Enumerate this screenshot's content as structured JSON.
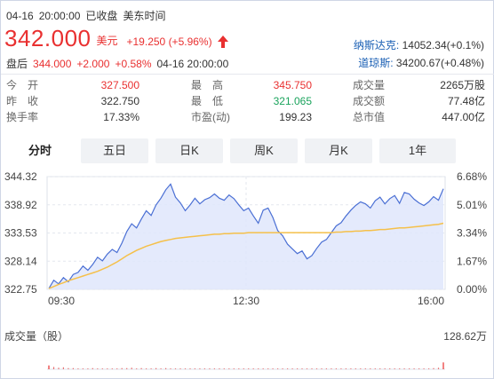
{
  "header": {
    "date": "04-16",
    "time": "20:00:00",
    "status": "已收盘",
    "timezone": "美东时间"
  },
  "quote": {
    "price": "342.000",
    "unit": "美元",
    "change": "+19.250",
    "change_pct": "(+5.96%)"
  },
  "after_hours": {
    "label": "盘后",
    "price": "344.000",
    "change": "+2.000",
    "change_pct": "+0.58%",
    "datetime": "04-16 20:00:00"
  },
  "indices": [
    {
      "name": "纳斯达克:",
      "value": "14052.34(+0.1%)"
    },
    {
      "name": "道琼斯:",
      "value": "34200.67(+0.48%)"
    }
  ],
  "stats": {
    "open_label": "今　开",
    "open": "327.500",
    "prev_close_label": "昨　收",
    "prev_close": "322.750",
    "turnover_label": "换手率",
    "turnover": "17.33%",
    "high_label": "最　高",
    "high": "345.750",
    "low_label": "最　低",
    "low": "321.065",
    "pe_label": "市盈(动)",
    "pe": "199.23",
    "volume_label": "成交量",
    "volume": "2265万股",
    "amount_label": "成交额",
    "amount": "77.48亿",
    "mktcap_label": "总市值",
    "mktcap": "447.00亿"
  },
  "tabs": [
    "分时",
    "五日",
    "日K",
    "周K",
    "月K",
    "1年"
  ],
  "active_tab": 0,
  "colors": {
    "up": "#e93030",
    "down": "#1aa35c",
    "price_line": "#4a6fd4",
    "avg_line": "#f5c04a",
    "fill": "#dfe6fb"
  },
  "chart_data": {
    "type": "line",
    "y_ticks_left": [
      "344.32",
      "338.92",
      "333.53",
      "328.14",
      "322.75"
    ],
    "y_ticks_right": [
      "6.68%",
      "5.01%",
      "3.34%",
      "1.67%",
      "0.00%"
    ],
    "x_ticks": [
      "09:30",
      "12:30",
      "16:00"
    ],
    "ylim": [
      322.75,
      344.32
    ],
    "volume_label": "成交量（股）",
    "volume_max": "128.62万",
    "series": [
      {
        "values": [
          322.9,
          324.5,
          323.8,
          325.0,
          324.2,
          325.6,
          326.0,
          327.2,
          326.4,
          327.5,
          328.9,
          328.2,
          329.5,
          330.4,
          329.8,
          331.6,
          333.8,
          335.3,
          334.5,
          336.2,
          337.8,
          336.9,
          338.9,
          340.2,
          341.8,
          342.9,
          340.4,
          339.3,
          337.8,
          338.9,
          340.2,
          339.1,
          339.9,
          340.3,
          341.0,
          340.2,
          339.8,
          340.8,
          340.1,
          338.9,
          337.8,
          338.3,
          336.8,
          335.4,
          337.9,
          338.3,
          336.5,
          334.0,
          333.0,
          331.4,
          330.5,
          329.6,
          330.1,
          328.6,
          329.2,
          330.6,
          331.8,
          332.3,
          333.6,
          334.9,
          335.5,
          336.8,
          337.9,
          338.8,
          339.5,
          339.1,
          338.3,
          339.7,
          340.4,
          339.1,
          340.1,
          340.7,
          339.2,
          341.3,
          341.0,
          340.0,
          339.3,
          338.8,
          339.5,
          340.5,
          339.8,
          342.0
        ]
      },
      {
        "values": [
          322.9,
          323.3,
          323.7,
          324.0,
          324.4,
          324.7,
          325.0,
          325.3,
          325.6,
          325.9,
          326.2,
          326.6,
          327.0,
          327.5,
          328.0,
          328.6,
          329.2,
          329.7,
          330.2,
          330.6,
          331.0,
          331.3,
          331.6,
          331.9,
          332.1,
          332.3,
          332.5,
          332.6,
          332.7,
          332.8,
          332.9,
          333.0,
          333.1,
          333.2,
          333.3,
          333.3,
          333.4,
          333.4,
          333.5,
          333.5,
          333.5,
          333.6,
          333.6,
          333.6,
          333.6,
          333.6,
          333.6,
          333.6,
          333.6,
          333.6,
          333.6,
          333.6,
          333.6,
          333.6,
          333.6,
          333.6,
          333.6,
          333.6,
          333.6,
          333.7,
          333.7,
          333.8,
          333.8,
          333.9,
          333.9,
          334.0,
          334.0,
          334.1,
          334.2,
          334.2,
          334.3,
          334.4,
          334.5,
          334.5,
          334.6,
          334.7,
          334.8,
          334.9,
          335.0,
          335.1,
          335.2,
          335.4
        ]
      }
    ],
    "volume": [
      0.1,
      0.06,
      0.04,
      0.05,
      0.03,
      0.03,
      0.02,
      0.02,
      0.02,
      0.03,
      0.02,
      0.02,
      0.02,
      0.02,
      0.02,
      0.03,
      0.03,
      0.04,
      0.02,
      0.03,
      0.02,
      0.02,
      0.03,
      0.02,
      0.03,
      0.02,
      0.02,
      0.02,
      0.02,
      0.02,
      0.02,
      0.02,
      0.02,
      0.02,
      0.02,
      0.02,
      0.02,
      0.02,
      0.02,
      0.02,
      0.02,
      0.02,
      0.02,
      0.02,
      0.02,
      0.02,
      0.02,
      0.02,
      0.02,
      0.02,
      0.02,
      0.02,
      0.02,
      0.02,
      0.02,
      0.02,
      0.02,
      0.02,
      0.02,
      0.02,
      0.02,
      0.02,
      0.02,
      0.02,
      0.02,
      0.02,
      0.02,
      0.02,
      0.02,
      0.02,
      0.02,
      0.02,
      0.02,
      0.02,
      0.02,
      0.02,
      0.02,
      0.02,
      0.02,
      0.03,
      0.04,
      0.18
    ]
  }
}
